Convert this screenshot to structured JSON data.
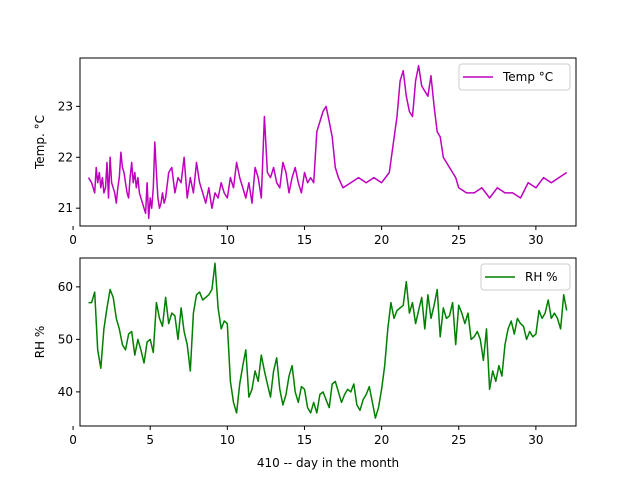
{
  "chart_data": [
    {
      "type": "line",
      "xlabel": "",
      "ylabel": "Temp. °C",
      "xlim": [
        0.45,
        32.6
      ],
      "ylim": [
        20.65,
        23.95
      ],
      "xticks": [
        0,
        5,
        10,
        15,
        20,
        25,
        30
      ],
      "yticks": [
        21,
        22,
        23
      ],
      "grid": false,
      "legend_position": "upper right",
      "series": [
        {
          "name": "Temp °C",
          "color": "#bf00bf",
          "x": [
            1.0,
            1.2,
            1.4,
            1.5,
            1.6,
            1.7,
            1.8,
            1.9,
            2.0,
            2.1,
            2.2,
            2.3,
            2.4,
            2.5,
            2.6,
            2.7,
            2.8,
            2.9,
            3.0,
            3.1,
            3.2,
            3.3,
            3.4,
            3.5,
            3.6,
            3.7,
            3.8,
            3.9,
            4.0,
            4.1,
            4.2,
            4.3,
            4.4,
            4.5,
            4.6,
            4.7,
            4.8,
            4.9,
            5.0,
            5.1,
            5.2,
            5.3,
            5.4,
            5.5,
            5.6,
            5.7,
            5.8,
            5.9,
            6.0,
            6.2,
            6.4,
            6.6,
            6.8,
            7.0,
            7.2,
            7.4,
            7.6,
            7.8,
            8.0,
            8.2,
            8.4,
            8.6,
            8.8,
            9.0,
            9.2,
            9.4,
            9.6,
            9.8,
            10.0,
            10.2,
            10.4,
            10.6,
            10.8,
            11.0,
            11.2,
            11.4,
            11.6,
            11.8,
            12.0,
            12.2,
            12.4,
            12.6,
            12.8,
            13.0,
            13.2,
            13.4,
            13.6,
            13.8,
            14.0,
            14.2,
            14.4,
            14.6,
            14.8,
            15.0,
            15.2,
            15.4,
            15.6,
            15.8,
            16.0,
            16.2,
            16.4,
            16.6,
            16.8,
            17.0,
            17.2,
            17.5,
            18.0,
            18.5,
            19.0,
            19.5,
            20.0,
            20.5,
            21.0,
            21.2,
            21.4,
            21.6,
            21.8,
            22.0,
            22.2,
            22.4,
            22.6,
            22.8,
            23.0,
            23.2,
            23.4,
            23.6,
            23.8,
            24.0,
            24.2,
            24.4,
            24.6,
            24.8,
            25.0,
            25.5,
            26.0,
            26.5,
            27.0,
            27.5,
            28.0,
            28.5,
            29.0,
            29.5,
            30.0,
            30.5,
            31.0,
            31.5,
            32.0
          ],
          "y": [
            21.6,
            21.5,
            21.3,
            21.8,
            21.5,
            21.7,
            21.4,
            21.6,
            21.3,
            21.4,
            21.9,
            21.2,
            22.0,
            21.5,
            21.4,
            21.3,
            21.1,
            21.4,
            21.6,
            22.1,
            21.8,
            21.7,
            21.5,
            21.3,
            21.2,
            21.6,
            21.9,
            21.5,
            21.7,
            21.4,
            21.6,
            21.3,
            21.2,
            21.1,
            21.0,
            20.9,
            21.5,
            20.8,
            21.2,
            21.0,
            21.4,
            22.3,
            21.7,
            21.2,
            21.0,
            21.1,
            21.3,
            21.1,
            21.2,
            21.7,
            21.8,
            21.3,
            21.6,
            21.5,
            22.0,
            21.2,
            21.6,
            21.3,
            21.9,
            21.5,
            21.3,
            21.1,
            21.4,
            21.0,
            21.3,
            21.2,
            21.5,
            21.3,
            21.2,
            21.6,
            21.4,
            21.9,
            21.6,
            21.4,
            21.2,
            21.5,
            21.1,
            21.8,
            21.6,
            21.2,
            22.8,
            21.7,
            21.6,
            21.8,
            21.5,
            21.4,
            21.9,
            21.7,
            21.3,
            21.6,
            21.8,
            21.5,
            21.3,
            21.7,
            21.5,
            21.6,
            21.5,
            22.5,
            22.7,
            22.9,
            23.0,
            22.7,
            22.4,
            21.8,
            21.6,
            21.4,
            21.5,
            21.6,
            21.5,
            21.6,
            21.5,
            21.7,
            22.8,
            23.5,
            23.7,
            23.2,
            22.9,
            22.8,
            23.5,
            23.8,
            23.4,
            23.3,
            23.2,
            23.6,
            23.0,
            22.5,
            22.4,
            22.0,
            21.9,
            21.8,
            21.7,
            21.6,
            21.4,
            21.3,
            21.3,
            21.4,
            21.2,
            21.4,
            21.3,
            21.3,
            21.2,
            21.5,
            21.4,
            21.6,
            21.5,
            21.6,
            21.7
          ]
        }
      ]
    },
    {
      "type": "line",
      "xlabel": "410 -- day in the month",
      "ylabel": "RH %",
      "xlim": [
        0.45,
        32.6
      ],
      "ylim": [
        33.5,
        65.5
      ],
      "xticks": [
        0,
        5,
        10,
        15,
        20,
        25,
        30
      ],
      "yticks": [
        40,
        50,
        60
      ],
      "grid": false,
      "legend_position": "upper right",
      "series": [
        {
          "name": "RH %",
          "color": "#008000",
          "x": [
            1.0,
            1.2,
            1.4,
            1.6,
            1.8,
            2.0,
            2.2,
            2.4,
            2.6,
            2.8,
            3.0,
            3.2,
            3.4,
            3.6,
            3.8,
            4.0,
            4.2,
            4.4,
            4.6,
            4.8,
            5.0,
            5.2,
            5.4,
            5.6,
            5.8,
            6.0,
            6.2,
            6.4,
            6.6,
            6.8,
            7.0,
            7.2,
            7.4,
            7.6,
            7.8,
            8.0,
            8.2,
            8.4,
            8.6,
            8.8,
            9.0,
            9.2,
            9.4,
            9.6,
            9.8,
            10.0,
            10.2,
            10.4,
            10.6,
            10.8,
            11.0,
            11.2,
            11.4,
            11.6,
            11.8,
            12.0,
            12.2,
            12.4,
            12.6,
            12.8,
            13.0,
            13.2,
            13.4,
            13.6,
            13.8,
            14.0,
            14.2,
            14.4,
            14.6,
            14.8,
            15.0,
            15.2,
            15.4,
            15.6,
            15.8,
            16.0,
            16.2,
            16.4,
            16.6,
            16.8,
            17.0,
            17.2,
            17.4,
            17.6,
            17.8,
            18.0,
            18.2,
            18.4,
            18.6,
            18.8,
            19.0,
            19.2,
            19.4,
            19.6,
            19.8,
            20.0,
            20.2,
            20.4,
            20.6,
            20.8,
            21.0,
            21.2,
            21.4,
            21.6,
            21.8,
            22.0,
            22.2,
            22.4,
            22.6,
            22.8,
            23.0,
            23.2,
            23.4,
            23.6,
            23.8,
            24.0,
            24.2,
            24.4,
            24.6,
            24.8,
            25.0,
            25.2,
            25.4,
            25.6,
            25.8,
            26.0,
            26.2,
            26.4,
            26.6,
            26.8,
            27.0,
            27.2,
            27.4,
            27.6,
            27.8,
            28.0,
            28.2,
            28.4,
            28.6,
            28.8,
            29.0,
            29.2,
            29.4,
            29.6,
            29.8,
            30.0,
            30.2,
            30.4,
            30.6,
            30.8,
            31.0,
            31.2,
            31.4,
            31.6,
            31.8,
            32.0
          ],
          "y": [
            57.0,
            57.0,
            59.0,
            48.0,
            44.5,
            52.0,
            56.0,
            59.5,
            58.0,
            54.0,
            52.0,
            49.0,
            48.0,
            51.0,
            51.5,
            47.0,
            50.0,
            48.0,
            45.5,
            49.5,
            50.0,
            47.5,
            57.0,
            54.0,
            52.5,
            58.0,
            53.0,
            55.0,
            54.5,
            50.0,
            56.0,
            51.5,
            49.0,
            44.0,
            55.0,
            58.5,
            59.0,
            57.5,
            58.0,
            58.5,
            59.5,
            64.5,
            56.0,
            52.0,
            53.5,
            53.0,
            42.0,
            38.0,
            36.0,
            41.5,
            45.0,
            48.0,
            39.0,
            40.5,
            44.0,
            42.0,
            47.0,
            44.0,
            41.5,
            39.0,
            44.0,
            46.5,
            40.5,
            37.5,
            39.5,
            43.0,
            45.0,
            40.0,
            38.0,
            41.0,
            40.5,
            37.0,
            36.0,
            38.0,
            36.0,
            39.5,
            40.0,
            38.5,
            37.0,
            41.5,
            42.0,
            40.0,
            38.0,
            39.5,
            40.5,
            40.0,
            41.5,
            37.5,
            36.5,
            38.5,
            39.5,
            41.0,
            38.0,
            35.0,
            37.0,
            40.5,
            45.0,
            52.0,
            57.0,
            54.0,
            55.5,
            56.0,
            56.5,
            61.0,
            55.0,
            57.0,
            53.0,
            55.5,
            58.0,
            52.0,
            58.5,
            54.0,
            56.5,
            59.5,
            50.5,
            56.0,
            54.0,
            54.5,
            57.0,
            49.0,
            56.5,
            55.0,
            53.0,
            55.0,
            50.0,
            50.5,
            51.5,
            50.0,
            46.0,
            52.0,
            40.5,
            44.0,
            42.0,
            45.0,
            43.0,
            49.0,
            52.0,
            53.5,
            51.0,
            54.0,
            53.0,
            52.5,
            50.0,
            51.5,
            50.5,
            51.0,
            55.5,
            54.0,
            55.0,
            57.5,
            54.0,
            55.0,
            54.0,
            52.0,
            58.5,
            55.5
          ]
        }
      ]
    }
  ]
}
